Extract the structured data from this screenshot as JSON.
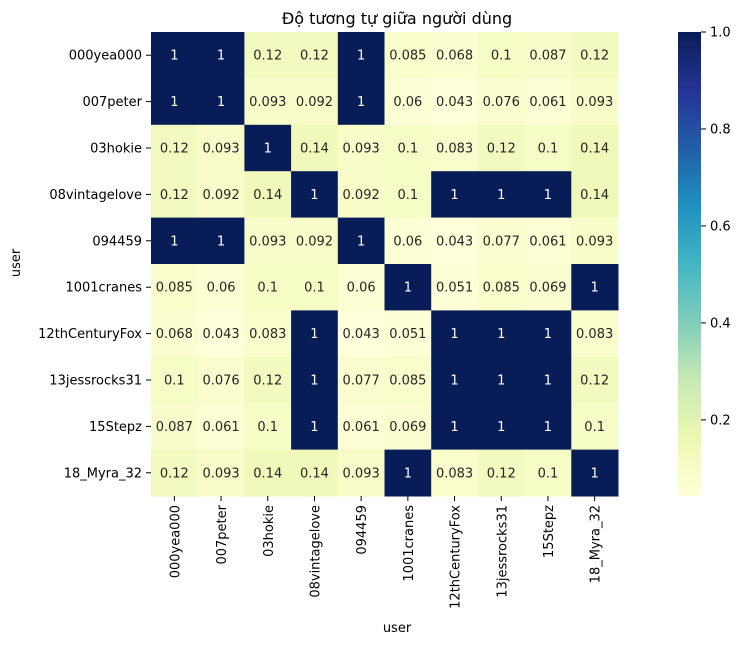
{
  "chart_data": {
    "type": "heatmap",
    "title": "Độ tương tự giữa người dùng",
    "xlabel": "user",
    "ylabel": "user",
    "x_categories": [
      "000yea000",
      "007peter",
      "03hokie",
      "08vintagelove",
      "094459",
      "1001cranes",
      "12thCenturyFox",
      "13jessrocks31",
      "15Stepz",
      "18_Myra_32"
    ],
    "y_categories": [
      "000yea000",
      "007peter",
      "03hokie",
      "08vintagelove",
      "094459",
      "1001cranes",
      "12thCenturyFox",
      "13jessrocks31",
      "15Stepz",
      "18_Myra_32"
    ],
    "values": [
      [
        1,
        1,
        0.12,
        0.12,
        1,
        0.085,
        0.068,
        0.1,
        0.087,
        0.12
      ],
      [
        1,
        1,
        0.093,
        0.092,
        1,
        0.06,
        0.043,
        0.076,
        0.061,
        0.093
      ],
      [
        0.12,
        0.093,
        1,
        0.14,
        0.093,
        0.1,
        0.083,
        0.12,
        0.1,
        0.14
      ],
      [
        0.12,
        0.092,
        0.14,
        1,
        0.092,
        0.1,
        1,
        1,
        1,
        0.14
      ],
      [
        1,
        1,
        0.093,
        0.092,
        1,
        0.06,
        0.043,
        0.077,
        0.061,
        0.093
      ],
      [
        0.085,
        0.06,
        0.1,
        0.1,
        0.06,
        1,
        0.051,
        0.085,
        0.069,
        1
      ],
      [
        0.068,
        0.043,
        0.083,
        1,
        0.043,
        0.051,
        1,
        1,
        1,
        0.083
      ],
      [
        0.1,
        0.076,
        0.12,
        1,
        0.077,
        0.085,
        1,
        1,
        1,
        0.12
      ],
      [
        0.087,
        0.061,
        0.1,
        1,
        0.061,
        0.069,
        1,
        1,
        1,
        0.1
      ],
      [
        0.12,
        0.093,
        0.14,
        0.14,
        0.093,
        1,
        0.083,
        0.12,
        0.1,
        1
      ]
    ],
    "colormap": "YlGnBu",
    "colorbar": {
      "range": [
        0.043,
        1.0
      ],
      "ticks": [
        0.2,
        0.4,
        0.6,
        0.8,
        1.0
      ],
      "tick_labels": [
        "0.2",
        "0.4",
        "0.6",
        "0.8",
        "1.0"
      ]
    },
    "annotated": true,
    "grid": false
  }
}
